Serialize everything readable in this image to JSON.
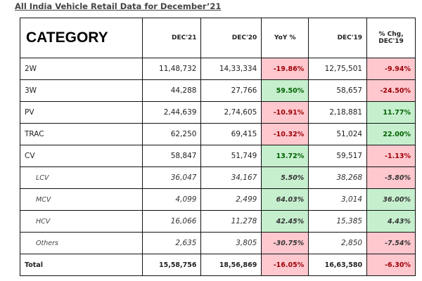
{
  "title": "All India Vehicle Retail Data for December’21",
  "colors": {
    "neg_bg": "#ffc7ce",
    "neg_text": "#9c0006",
    "pos_bg": "#c6efce",
    "pos_text": "#006100"
  },
  "headers": [
    "CATEGORY",
    "DEC'21",
    "DEC'20",
    "YoY %",
    "DEC'19",
    "% Chg, DEC'19"
  ],
  "rows": [
    {
      "category": "2W",
      "dec21": "11,48,732",
      "dec20": "14,33,334",
      "yoy": "-19.86%",
      "dec19": "12,75,501",
      "chg19": "-9.94%",
      "sub": false
    },
    {
      "category": "3W",
      "dec21": "44,288",
      "dec20": "27,766",
      "yoy": "59.50%",
      "dec19": "58,657",
      "chg19": "-24.50%",
      "sub": false
    },
    {
      "category": "PV",
      "dec21": "2,44,639",
      "dec20": "2,74,605",
      "yoy": "-10.91%",
      "dec19": "2,18,881",
      "chg19": "11.77%",
      "sub": false
    },
    {
      "category": "TRAC",
      "dec21": "62,250",
      "dec20": "69,415",
      "yoy": "-10.32%",
      "dec19": "51,024",
      "chg19": "22.00%",
      "sub": false
    },
    {
      "category": "CV",
      "dec21": "58,847",
      "dec20": "51,749",
      "yoy": "13.72%",
      "dec19": "59,517",
      "chg19": "-1.13%",
      "sub": false
    },
    {
      "category": "LCV",
      "dec21": "36,047",
      "dec20": "34,167",
      "yoy": "5.50%",
      "dec19": "38,268",
      "chg19": "-5.80%",
      "sub": true
    },
    {
      "category": "MCV",
      "dec21": "4,099",
      "dec20": "2,499",
      "yoy": "64.03%",
      "dec19": "3,014",
      "chg19": "36.00%",
      "sub": true
    },
    {
      "category": "HCV",
      "dec21": "16,066",
      "dec20": "11,278",
      "yoy": "42.45%",
      "dec19": "15,385",
      "chg19": "4.43%",
      "sub": true
    },
    {
      "category": "Others",
      "dec21": "2,635",
      "dec20": "3,805",
      "yoy": "-30.75%",
      "dec19": "2,850",
      "chg19": "-7.54%",
      "sub": true
    }
  ],
  "total": {
    "category": "Total",
    "dec21": "15,58,756",
    "dec20": "18,56,869",
    "yoy": "-16.05%",
    "dec19": "16,63,580",
    "chg19": "-6.30%"
  }
}
